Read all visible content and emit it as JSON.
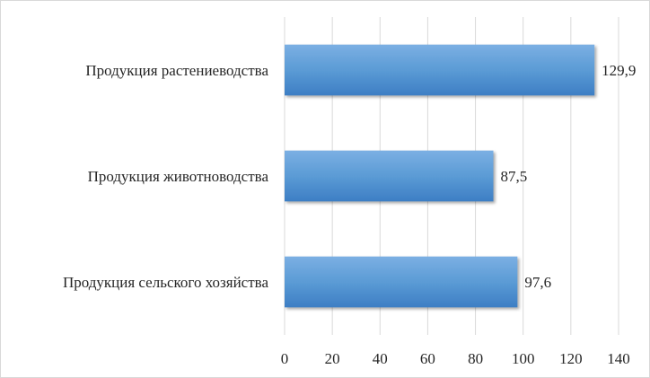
{
  "chart_data": {
    "type": "bar",
    "orientation": "horizontal",
    "categories": [
      "Продукция растениеводства",
      "Продукция животноводства",
      "Продукция сельского хозяйства"
    ],
    "values": [
      129.9,
      87.5,
      97.6
    ],
    "data_labels": [
      "129,9",
      "87,5",
      "97,6"
    ],
    "xlim": [
      0,
      140
    ],
    "xticks": [
      0,
      20,
      40,
      60,
      80,
      100,
      120,
      140
    ],
    "xtick_labels": [
      "0",
      "20",
      "40",
      "60",
      "80",
      "100",
      "120",
      "140"
    ],
    "grid": "vertical",
    "legend": "none",
    "title": "",
    "xlabel": "",
    "ylabel": "",
    "colors": {
      "bar_light": "#7bafe3",
      "bar_mid": "#5b9bd5",
      "bar_dark": "#3d7ec4",
      "grid": "#d9d9d9",
      "text": "#262626"
    }
  }
}
